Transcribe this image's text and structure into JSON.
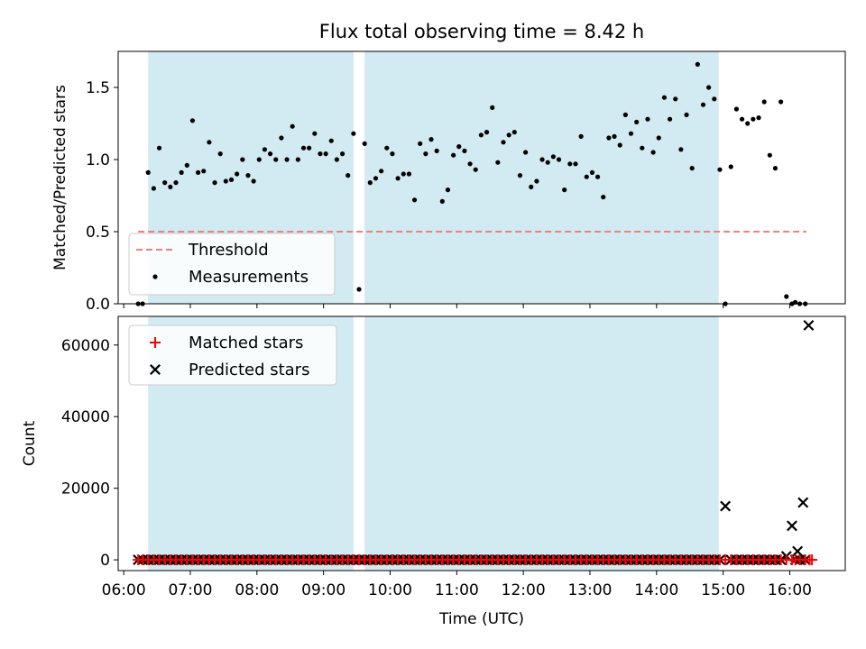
{
  "chart_data": [
    {
      "type": "scatter",
      "title": "Flux total observing time = 8.42 h",
      "ylabel": "Matched/Predicted stars",
      "ylim": [
        0,
        1.75
      ],
      "yticks": [
        "0.0",
        "0.5",
        "1.0",
        "1.5"
      ],
      "xlim": [
        "05:55",
        "16:50"
      ],
      "threshold": {
        "name": "Threshold",
        "value": 0.5,
        "x_range": [
          "06:13",
          "16:15"
        ],
        "color": "#f08080"
      },
      "observing_windows": [
        {
          "start": "06:22",
          "end": "09:27"
        },
        {
          "start": "09:37",
          "end": "14:56"
        }
      ],
      "shade_color": "#add8e6",
      "series": [
        {
          "name": "Measurements",
          "color": "#000000",
          "points": [
            [
              "06:13",
              0.0
            ],
            [
              "06:17",
              0.0
            ],
            [
              "06:22",
              0.91
            ],
            [
              "06:27",
              0.8
            ],
            [
              "06:32",
              1.08
            ],
            [
              "06:37",
              0.84
            ],
            [
              "06:42",
              0.81
            ],
            [
              "06:47",
              0.84
            ],
            [
              "06:52",
              0.91
            ],
            [
              "06:57",
              0.96
            ],
            [
              "07:02",
              1.27
            ],
            [
              "07:07",
              0.91
            ],
            [
              "07:12",
              0.92
            ],
            [
              "07:17",
              1.12
            ],
            [
              "07:22",
              0.84
            ],
            [
              "07:27",
              1.04
            ],
            [
              "07:32",
              0.85
            ],
            [
              "07:37",
              0.86
            ],
            [
              "07:42",
              0.9
            ],
            [
              "07:47",
              1.0
            ],
            [
              "07:52",
              0.89
            ],
            [
              "07:57",
              0.85
            ],
            [
              "08:02",
              1.0
            ],
            [
              "08:07",
              1.07
            ],
            [
              "08:12",
              1.04
            ],
            [
              "08:17",
              1.0
            ],
            [
              "08:22",
              1.15
            ],
            [
              "08:27",
              1.0
            ],
            [
              "08:32",
              1.23
            ],
            [
              "08:37",
              1.0
            ],
            [
              "08:42",
              1.08
            ],
            [
              "08:47",
              1.08
            ],
            [
              "08:52",
              1.18
            ],
            [
              "08:57",
              1.04
            ],
            [
              "09:02",
              1.04
            ],
            [
              "09:07",
              1.13
            ],
            [
              "09:12",
              1.0
            ],
            [
              "09:17",
              1.04
            ],
            [
              "09:22",
              0.89
            ],
            [
              "09:27",
              1.18
            ],
            [
              "09:32",
              0.1
            ],
            [
              "09:37",
              1.11
            ],
            [
              "09:42",
              0.84
            ],
            [
              "09:47",
              0.87
            ],
            [
              "09:52",
              0.92
            ],
            [
              "09:57",
              1.08
            ],
            [
              "10:02",
              1.04
            ],
            [
              "10:07",
              0.87
            ],
            [
              "10:12",
              0.9
            ],
            [
              "10:17",
              0.9
            ],
            [
              "10:22",
              0.72
            ],
            [
              "10:27",
              1.11
            ],
            [
              "10:32",
              1.04
            ],
            [
              "10:37",
              1.14
            ],
            [
              "10:42",
              1.06
            ],
            [
              "10:47",
              0.71
            ],
            [
              "10:52",
              0.79
            ],
            [
              "10:57",
              1.03
            ],
            [
              "11:02",
              1.09
            ],
            [
              "11:07",
              1.06
            ],
            [
              "11:12",
              0.97
            ],
            [
              "11:17",
              0.93
            ],
            [
              "11:22",
              1.17
            ],
            [
              "11:27",
              1.19
            ],
            [
              "11:32",
              1.36
            ],
            [
              "11:37",
              0.98
            ],
            [
              "11:42",
              1.12
            ],
            [
              "11:47",
              1.17
            ],
            [
              "11:52",
              1.19
            ],
            [
              "11:57",
              0.89
            ],
            [
              "12:02",
              1.05
            ],
            [
              "12:07",
              0.81
            ],
            [
              "12:12",
              0.85
            ],
            [
              "12:17",
              1.0
            ],
            [
              "12:22",
              0.98
            ],
            [
              "12:27",
              1.02
            ],
            [
              "12:32",
              1.0
            ],
            [
              "12:37",
              0.79
            ],
            [
              "12:42",
              0.97
            ],
            [
              "12:47",
              0.97
            ],
            [
              "12:52",
              1.16
            ],
            [
              "12:57",
              0.88
            ],
            [
              "13:02",
              0.91
            ],
            [
              "13:07",
              0.88
            ],
            [
              "13:12",
              0.74
            ],
            [
              "13:17",
              1.15
            ],
            [
              "13:22",
              1.16
            ],
            [
              "13:27",
              1.1
            ],
            [
              "13:32",
              1.31
            ],
            [
              "13:37",
              1.18
            ],
            [
              "13:42",
              1.26
            ],
            [
              "13:47",
              1.08
            ],
            [
              "13:52",
              1.28
            ],
            [
              "13:57",
              1.05
            ],
            [
              "14:02",
              1.15
            ],
            [
              "14:07",
              1.43
            ],
            [
              "14:12",
              1.28
            ],
            [
              "14:17",
              1.42
            ],
            [
              "14:22",
              1.07
            ],
            [
              "14:27",
              1.31
            ],
            [
              "14:32",
              0.94
            ],
            [
              "14:37",
              1.66
            ],
            [
              "14:42",
              1.38
            ],
            [
              "14:47",
              1.5
            ],
            [
              "14:52",
              1.42
            ],
            [
              "14:57",
              0.93
            ],
            [
              "15:02",
              0.0
            ],
            [
              "15:07",
              0.95
            ],
            [
              "15:12",
              1.35
            ],
            [
              "15:17",
              1.28
            ],
            [
              "15:22",
              1.25
            ],
            [
              "15:27",
              1.28
            ],
            [
              "15:32",
              1.29
            ],
            [
              "15:37",
              1.4
            ],
            [
              "15:42",
              1.03
            ],
            [
              "15:47",
              0.94
            ],
            [
              "15:52",
              1.4
            ],
            [
              "15:57",
              0.05
            ],
            [
              "16:02",
              0.0
            ],
            [
              "16:05",
              0.01
            ],
            [
              "16:09",
              0.0
            ],
            [
              "16:14",
              0.0
            ]
          ]
        }
      ],
      "legend": {
        "placement": "lower-left",
        "entries": [
          "Threshold",
          "Measurements"
        ]
      }
    },
    {
      "type": "scatter",
      "ylabel": "Count",
      "xlabel": "Time (UTC)",
      "ylim": [
        -3000,
        68000
      ],
      "yticks": [
        "0",
        "20000",
        "40000",
        "60000"
      ],
      "xlim": [
        "05:55",
        "16:50"
      ],
      "xticks": [
        "06:00",
        "07:00",
        "08:00",
        "09:00",
        "10:00",
        "11:00",
        "12:00",
        "13:00",
        "14:00",
        "15:00",
        "16:00"
      ],
      "observing_windows": [
        {
          "start": "06:22",
          "end": "09:27"
        },
        {
          "start": "09:37",
          "end": "14:56"
        }
      ],
      "shade_color": "#add8e6",
      "series": [
        {
          "name": "Matched stars",
          "color": "#ff0000",
          "marker": "plus",
          "points_note": "approximately 0 at every measurement time from 06:13 to 16:20"
        },
        {
          "name": "Predicted stars",
          "color": "#000000",
          "marker": "x",
          "points_note": "approximately 0 at every measurement time except the outliers below",
          "outliers": [
            [
              "15:02",
              15000
            ],
            [
              "15:57",
              1000
            ],
            [
              "16:02",
              9500
            ],
            [
              "16:07",
              2400
            ],
            [
              "16:12",
              16000
            ],
            [
              "16:17",
              65500
            ]
          ]
        }
      ],
      "legend": {
        "placement": "upper-left",
        "entries": [
          "Matched stars",
          "Predicted stars"
        ]
      }
    }
  ]
}
